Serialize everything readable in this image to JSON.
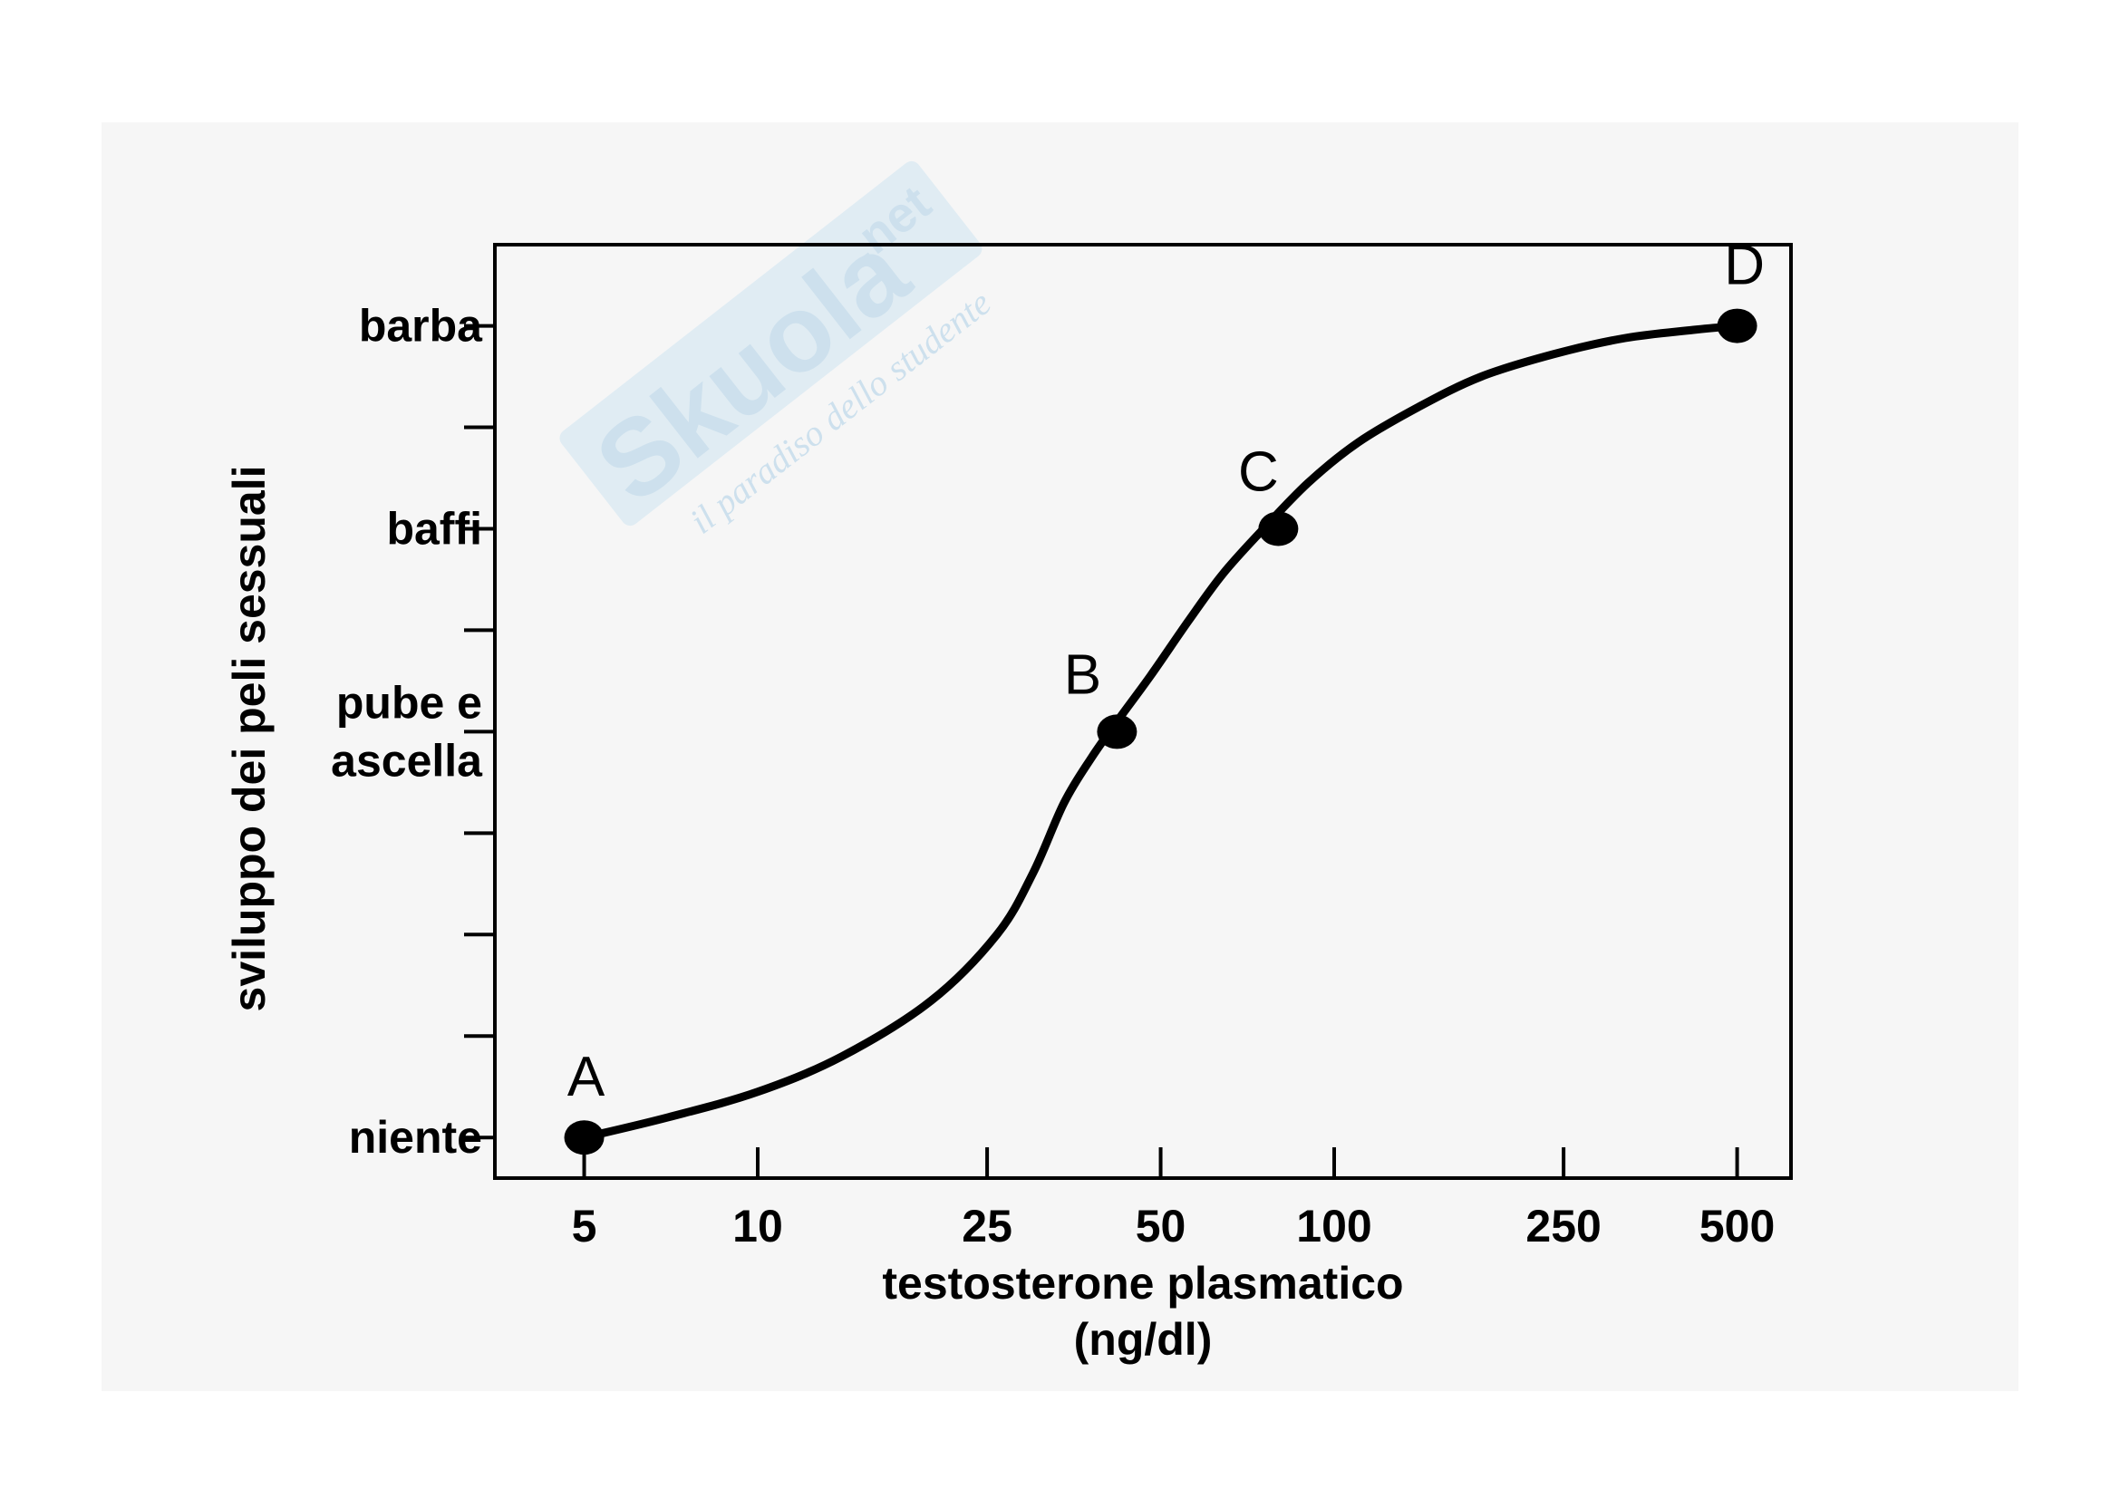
{
  "watermark": {
    "brand": "Skuola",
    "suffix": ".net",
    "tagline": "il paradiso dello studente"
  },
  "colors": {
    "curve": "#000000",
    "points": "#000000",
    "watermark": "#bcd8ea",
    "background": "#f6f6f6"
  },
  "chart_data": {
    "type": "line",
    "x_scale": "log",
    "xlabel": "testosterone plasmatico",
    "xlabel_unit": "(ng/dl)",
    "ylabel": "sviluppo dei peli sessuali",
    "x_ticks": [
      5,
      10,
      25,
      50,
      100,
      250,
      500
    ],
    "x_tick_labels": [
      "5",
      "10",
      "25",
      "50",
      "100",
      "250",
      "500"
    ],
    "xlim": [
      3.5,
      620
    ],
    "ylim": [
      -0.4,
      8.8
    ],
    "y_ticks": [
      0,
      1,
      2,
      3,
      4,
      5,
      6,
      7,
      8
    ],
    "y_tick_labels": [
      {
        "value": 0,
        "lines": [
          "niente"
        ]
      },
      {
        "value": 4,
        "lines": [
          "pube e",
          "ascella"
        ]
      },
      {
        "value": 6,
        "lines": [
          "baffi"
        ]
      },
      {
        "value": 8,
        "lines": [
          "barba"
        ]
      }
    ],
    "series": [
      {
        "x": [
          5,
          7,
          10,
          14,
          20,
          26,
          30,
          34,
          38,
          42,
          48,
          56,
          64,
          74,
          90,
          110,
          140,
          180,
          240,
          320,
          420,
          500
        ],
        "y": [
          0,
          0.2,
          0.45,
          0.8,
          1.35,
          2.0,
          2.6,
          3.3,
          3.75,
          4.1,
          4.55,
          5.1,
          5.55,
          5.95,
          6.45,
          6.85,
          7.2,
          7.5,
          7.72,
          7.88,
          7.96,
          8.0
        ]
      }
    ],
    "points": [
      {
        "label": "A",
        "x": 5,
        "y": 0
      },
      {
        "label": "B",
        "x": 42,
        "y": 4
      },
      {
        "label": "C",
        "x": 80,
        "y": 6
      },
      {
        "label": "D",
        "x": 500,
        "y": 8
      }
    ]
  }
}
